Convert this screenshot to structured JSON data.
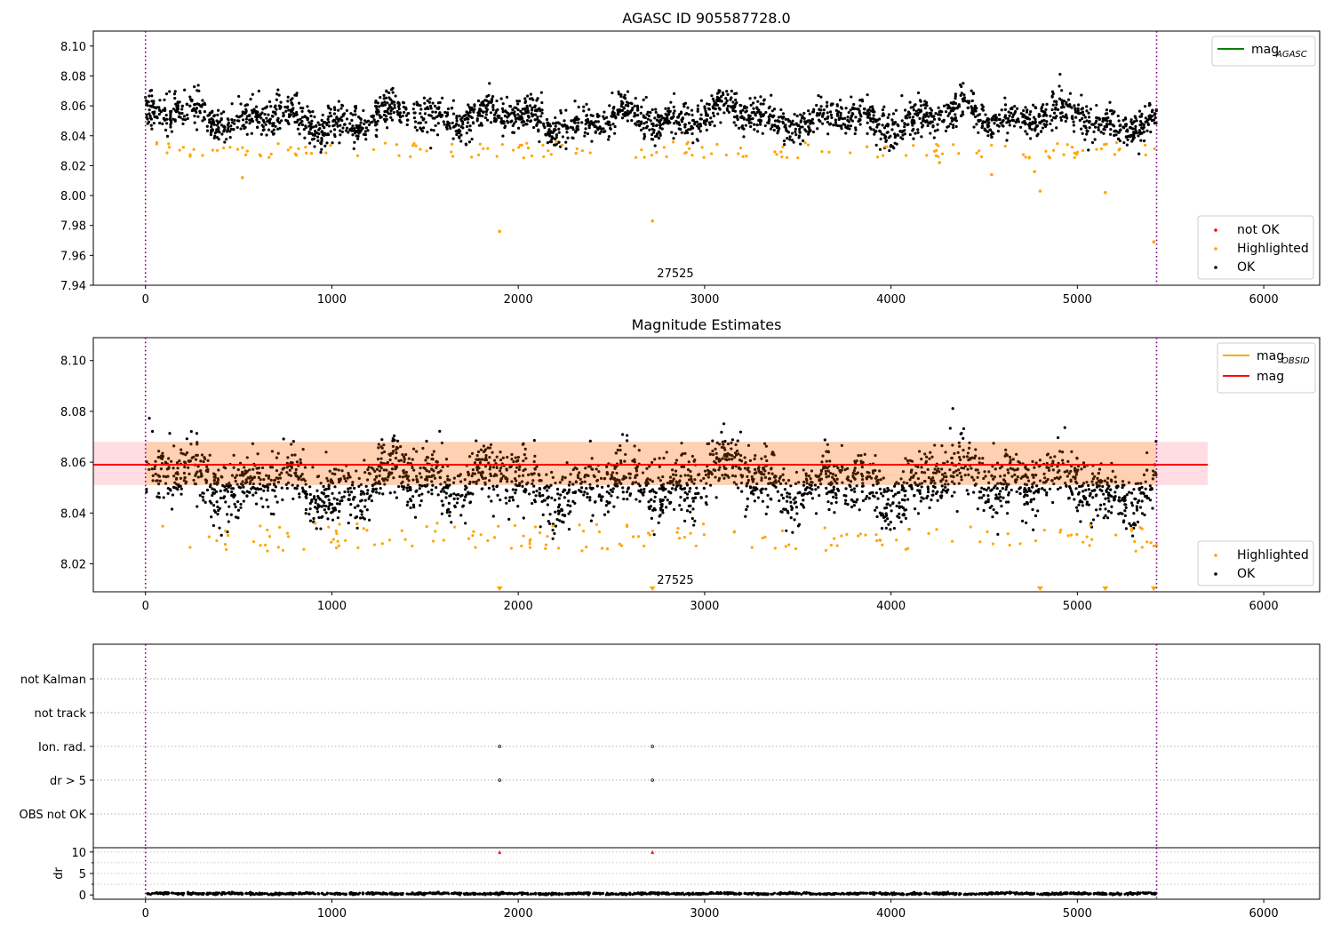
{
  "chart_data": [
    {
      "type": "scatter",
      "title": "AGASC ID 905587728.0",
      "xlim": [
        -280,
        6300
      ],
      "ylim": [
        7.94,
        8.11
      ],
      "xticks": [
        0,
        1000,
        2000,
        3000,
        4000,
        5000,
        6000
      ],
      "xtick_labels": [
        "0",
        "1000",
        "2000",
        "3000",
        "4000",
        "5000",
        "6000"
      ],
      "yticks": [
        7.94,
        7.96,
        7.98,
        8.0,
        8.02,
        8.04,
        8.06,
        8.08,
        8.1
      ],
      "ytick_labels": [
        "7.94",
        "7.96",
        "7.98",
        "8.00",
        "8.02",
        "8.04",
        "8.06",
        "8.08",
        "8.10"
      ],
      "obsid_label": "27525",
      "obsid_label_x": 2700,
      "obs_boundaries": [
        0,
        5425
      ],
      "line_legend": [
        {
          "name": "mag",
          "subscript": "AGASC",
          "color": "#008000"
        }
      ],
      "marker_legend": [
        {
          "name": "not OK",
          "color": "#ff0000"
        },
        {
          "name": "Highlighted",
          "color": "#ffa500"
        },
        {
          "name": "OK",
          "color": "#000000"
        }
      ],
      "series": [
        {
          "name": "OK",
          "color": "#000000",
          "x_range": [
            0,
            5425
          ],
          "base": 8.052,
          "spread": 0.006,
          "fluct": 0.008,
          "count": 2600
        },
        {
          "name": "Highlighted",
          "color": "#ffa500",
          "x_range": [
            0,
            5425
          ],
          "band": [
            8.025,
            8.036
          ],
          "count": 160
        },
        {
          "name": "Highlighted outliers",
          "color": "#ffa500",
          "x": [
            520,
            1900,
            2720,
            4260,
            4540,
            4770,
            4800,
            5150,
            5410
          ],
          "y": [
            8.012,
            7.976,
            7.983,
            8.022,
            8.014,
            8.016,
            8.003,
            8.002,
            7.969
          ]
        }
      ]
    },
    {
      "type": "scatter",
      "title": "Magnitude Estimates",
      "xlim": [
        -280,
        6300
      ],
      "ylim": [
        8.009,
        8.109
      ],
      "xticks": [
        0,
        1000,
        2000,
        3000,
        4000,
        5000,
        6000
      ],
      "xtick_labels": [
        "0",
        "1000",
        "2000",
        "3000",
        "4000",
        "5000",
        "6000"
      ],
      "yticks": [
        8.02,
        8.04,
        8.06,
        8.08,
        8.1
      ],
      "ytick_labels": [
        "8.02",
        "8.04",
        "8.06",
        "8.08",
        "8.10"
      ],
      "obsid_label": "27525",
      "obsid_label_x": 2700,
      "obs_boundaries": [
        0,
        5425
      ],
      "mag": 8.059,
      "mag_band": [
        8.051,
        8.068
      ],
      "mag_band_x": [
        -280,
        5700
      ],
      "line_legend": [
        {
          "name": "mag",
          "subscript": "OBSID",
          "color": "#ffa500"
        },
        {
          "name": "mag",
          "subscript": "",
          "color": "#ff0000"
        }
      ],
      "marker_legend": [
        {
          "name": "Highlighted",
          "color": "#ffa500"
        },
        {
          "name": "OK",
          "color": "#000000"
        }
      ],
      "below_range_markers": [
        1900,
        2720,
        4800,
        5150,
        5410
      ],
      "series": [
        {
          "name": "OK",
          "color": "#000000",
          "x_range": [
            0,
            5425
          ],
          "base": 8.052,
          "spread": 0.006,
          "fluct": 0.008,
          "count": 2600
        },
        {
          "name": "Highlighted",
          "color": "#ffa500",
          "x_range": [
            0,
            5425
          ],
          "band": [
            8.025,
            8.036
          ],
          "count": 160
        }
      ]
    },
    {
      "type": "scatter",
      "title": "",
      "xlim": [
        -280,
        6300
      ],
      "categories": [
        "not Kalman",
        "not track",
        "Ion. rad.",
        "dr > 5",
        "OBS not OK"
      ],
      "obs_boundaries": [
        0,
        5425
      ],
      "flag_points": [
        {
          "category": "Ion. rad.",
          "x": [
            1900,
            2720
          ]
        },
        {
          "category": "dr > 5",
          "x": [
            1900,
            2720
          ]
        }
      ]
    },
    {
      "type": "scatter",
      "title": "",
      "ylabel": "dr",
      "xlim": [
        -280,
        6300
      ],
      "ylim": [
        -1,
        11
      ],
      "yticks": [
        0,
        5,
        10
      ],
      "ytick_labels": [
        "0",
        "5",
        "10"
      ],
      "xticks": [
        0,
        1000,
        2000,
        3000,
        4000,
        5000,
        6000
      ],
      "xtick_labels": [
        "0",
        "1000",
        "2000",
        "3000",
        "4000",
        "5000",
        "6000"
      ],
      "obs_boundaries": [
        0,
        5425
      ],
      "dr_series": {
        "color": "#000000",
        "x_range": [
          0,
          5425
        ],
        "typical": 0.3,
        "max_normal": 0.7,
        "count": 1500
      },
      "dr_clipped": {
        "color": "#ff0000",
        "x": [
          1900,
          2720
        ],
        "y": 10
      }
    }
  ]
}
